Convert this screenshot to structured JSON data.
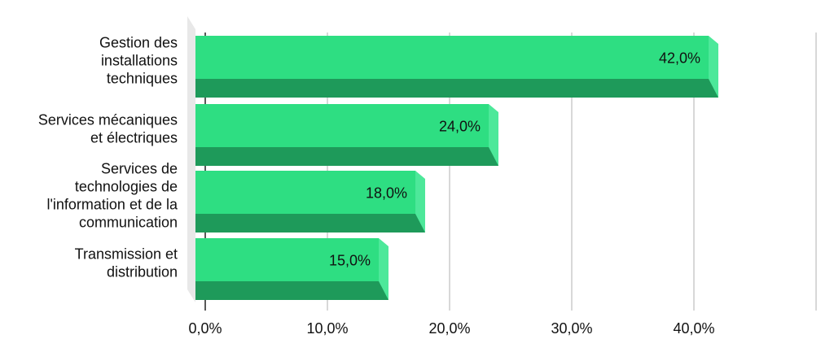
{
  "chart_data": {
    "type": "bar",
    "orientation": "horizontal",
    "style": "3d",
    "categories": [
      [
        "Gestion des",
        "installations",
        "techniques"
      ],
      [
        "Services mécaniques",
        "et électriques"
      ],
      [
        "Services de",
        "technologies de",
        "l'information et de la",
        "communication"
      ],
      [
        "Transmission et",
        "distribution"
      ]
    ],
    "values": [
      42.0,
      24.0,
      18.0,
      15.0
    ],
    "value_labels": [
      "42,0%",
      "24,0%",
      "18,0%",
      "15,0%"
    ],
    "x_ticks": [
      0,
      10,
      20,
      30,
      40,
      50
    ],
    "x_tick_labels": [
      "0,0%",
      "10,0%",
      "20,0%",
      "30,0%",
      "40,0%",
      ""
    ],
    "xlim": [
      0,
      50
    ],
    "grid": true,
    "legend": "none",
    "colors": {
      "bar_front": "#2ede82",
      "bar_bottom": "#1e9a5a",
      "bar_side": "#4de89a",
      "grid": "#cccccc",
      "wall": "#e8e8e8",
      "axis": "#222222"
    }
  }
}
